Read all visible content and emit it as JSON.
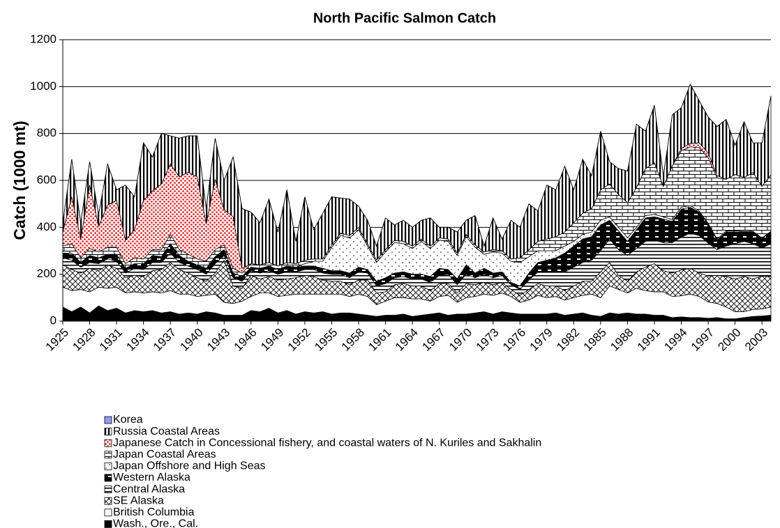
{
  "chart_data": {
    "type": "stacked_area",
    "title": "North Pacific Salmon Catch",
    "y_label": "Catch (1000 mt)",
    "x": [
      1925,
      1926,
      1927,
      1928,
      1929,
      1930,
      1931,
      1932,
      1933,
      1934,
      1935,
      1936,
      1937,
      1938,
      1939,
      1940,
      1941,
      1942,
      1943,
      1944,
      1945,
      1946,
      1947,
      1948,
      1949,
      1950,
      1951,
      1952,
      1953,
      1954,
      1955,
      1956,
      1957,
      1958,
      1959,
      1960,
      1961,
      1962,
      1963,
      1964,
      1965,
      1966,
      1967,
      1968,
      1969,
      1970,
      1971,
      1972,
      1973,
      1974,
      1975,
      1976,
      1977,
      1978,
      1979,
      1980,
      1981,
      1982,
      1983,
      1984,
      1985,
      1986,
      1987,
      1988,
      1989,
      1990,
      1991,
      1992,
      1993,
      1994,
      1995,
      1996,
      1997,
      1998,
      1999,
      2000,
      2001,
      2002,
      2003,
      2004
    ],
    "xlim": [
      1925,
      2004
    ],
    "xticks": [
      1925,
      1928,
      1931,
      1934,
      1937,
      1940,
      1943,
      1946,
      1949,
      1952,
      1955,
      1958,
      1961,
      1964,
      1967,
      1970,
      1973,
      1976,
      1979,
      1982,
      1985,
      1988,
      1991,
      1994,
      1997,
      2000,
      2003
    ],
    "ylim": [
      0,
      1200
    ],
    "yticks": [
      0,
      200,
      400,
      600,
      800,
      1000,
      1200
    ],
    "grid": true,
    "series": [
      {
        "name": "Wash., Ore., Cal.",
        "color": "#000000",
        "pattern": "solid",
        "values": [
          60,
          40,
          60,
          35,
          65,
          45,
          55,
          35,
          45,
          40,
          45,
          35,
          40,
          30,
          35,
          30,
          40,
          35,
          25,
          25,
          25,
          45,
          40,
          55,
          35,
          45,
          30,
          40,
          35,
          40,
          30,
          35,
          35,
          30,
          25,
          20,
          25,
          25,
          30,
          20,
          25,
          30,
          35,
          25,
          30,
          30,
          35,
          40,
          30,
          40,
          35,
          30,
          30,
          30,
          30,
          35,
          25,
          30,
          35,
          25,
          20,
          35,
          30,
          35,
          30,
          30,
          25,
          25,
          15,
          18,
          15,
          15,
          12,
          15,
          10,
          10,
          15,
          20,
          22,
          25
        ]
      },
      {
        "name": "British Columbia",
        "color": "#ffffff",
        "pattern": "solid",
        "values": [
          85,
          90,
          75,
          90,
          80,
          95,
          90,
          85,
          80,
          80,
          80,
          85,
          90,
          85,
          80,
          75,
          70,
          80,
          55,
          50,
          60,
          60,
          80,
          65,
          70,
          65,
          85,
          75,
          80,
          75,
          85,
          80,
          70,
          85,
          80,
          50,
          60,
          75,
          70,
          75,
          70,
          55,
          70,
          85,
          50,
          70,
          70,
          75,
          80,
          80,
          70,
          50,
          60,
          80,
          70,
          70,
          65,
          70,
          75,
          90,
          80,
          115,
          105,
          85,
          110,
          100,
          100,
          100,
          90,
          90,
          100,
          90,
          70,
          60,
          50,
          30,
          25,
          30,
          30,
          35
        ]
      },
      {
        "name": "SE Alaska",
        "color": "#000000",
        "pattern": "crosshatch",
        "values": [
          95,
          90,
          70,
          100,
          70,
          100,
          80,
          65,
          70,
          70,
          90,
          100,
          120,
          105,
          90,
          80,
          60,
          90,
          180,
          75,
          55,
          90,
          60,
          70,
          70,
          70,
          70,
          80,
          75,
          60,
          55,
          55,
          50,
          60,
          70,
          50,
          40,
          55,
          60,
          55,
          55,
          45,
          55,
          50,
          40,
          60,
          50,
          50,
          45,
          45,
          30,
          30,
          45,
          50,
          50,
          45,
          40,
          50,
          60,
          55,
          110,
          100,
          60,
          50,
          70,
          100,
          120,
          90,
          100,
          110,
          110,
          100,
          110,
          120,
          130,
          140,
          150,
          130,
          140,
          130
        ]
      },
      {
        "name": "Central Alaska",
        "color": "#000000",
        "pattern": "hlines",
        "values": [
          30,
          40,
          25,
          25,
          30,
          25,
          30,
          20,
          30,
          30,
          35,
          30,
          40,
          30,
          30,
          35,
          30,
          40,
          20,
          35,
          30,
          20,
          25,
          25,
          25,
          30,
          25,
          25,
          30,
          30,
          30,
          30,
          30,
          35,
          30,
          30,
          35,
          30,
          30,
          30,
          30,
          35,
          35,
          40,
          35,
          40,
          30,
          35,
          30,
          30,
          20,
          25,
          40,
          50,
          60,
          60,
          80,
          80,
          80,
          90,
          90,
          100,
          110,
          110,
          100,
          110,
          100,
          120,
          130,
          140,
          150,
          160,
          140,
          110,
          130,
          150,
          150,
          150,
          120,
          140
        ]
      },
      {
        "name": "Western Alaska",
        "color": "#000000",
        "pattern": "blockwhite",
        "values": [
          20,
          30,
          20,
          30,
          25,
          20,
          30,
          20,
          20,
          25,
          30,
          25,
          40,
          30,
          20,
          20,
          25,
          30,
          25,
          20,
          20,
          15,
          20,
          20,
          20,
          25,
          20,
          15,
          15,
          20,
          15,
          15,
          20,
          20,
          15,
          20,
          25,
          20,
          20,
          20,
          20,
          25,
          30,
          20,
          25,
          40,
          20,
          25,
          20,
          15,
          10,
          15,
          30,
          40,
          50,
          60,
          80,
          90,
          100,
          100,
          110,
          80,
          80,
          60,
          80,
          100,
          100,
          100,
          90,
          120,
          110,
          100,
          80,
          40,
          60,
          50,
          40,
          50,
          40,
          50
        ]
      },
      {
        "name": "Japan Offshore and High Seas",
        "color": "#000000",
        "pattern": "dots",
        "values": [
          0,
          0,
          0,
          0,
          0,
          0,
          0,
          0,
          0,
          0,
          0,
          0,
          0,
          0,
          0,
          0,
          0,
          0,
          0,
          0,
          0,
          0,
          0,
          0,
          0,
          0,
          0,
          10,
          20,
          30,
          100,
          150,
          150,
          160,
          100,
          80,
          110,
          130,
          120,
          110,
          140,
          120,
          120,
          120,
          100,
          120,
          110,
          60,
          90,
          80,
          90,
          100,
          70,
          50,
          40,
          30,
          30,
          20,
          20,
          20,
          20,
          15,
          15,
          15,
          10,
          10,
          10,
          10,
          8,
          8,
          8,
          5,
          5,
          5,
          5,
          5,
          3,
          3,
          3,
          3
        ]
      },
      {
        "name": "Japan Coastal Areas",
        "color": "#000000",
        "pattern": "brick",
        "values": [
          30,
          40,
          20,
          30,
          25,
          30,
          30,
          20,
          25,
          20,
          25,
          30,
          40,
          25,
          30,
          25,
          30,
          30,
          20,
          20,
          15,
          15,
          15,
          15,
          15,
          15,
          15,
          15,
          10,
          10,
          10,
          10,
          10,
          10,
          10,
          10,
          10,
          10,
          10,
          10,
          10,
          10,
          10,
          10,
          10,
          10,
          10,
          10,
          10,
          10,
          10,
          20,
          30,
          40,
          50,
          60,
          60,
          80,
          90,
          100,
          130,
          140,
          140,
          150,
          170,
          200,
          220,
          130,
          230,
          240,
          250,
          270,
          280,
          260,
          220,
          240,
          230,
          250,
          220,
          240
        ]
      },
      {
        "name": "Japanese Catch in Concessional fishery, and coastal waters of N. Kuriles and Sakhalin",
        "color": "#ff0000",
        "pattern": "reddots",
        "values": [
          60,
          200,
          80,
          270,
          110,
          180,
          200,
          100,
          120,
          250,
          250,
          280,
          300,
          310,
          350,
          350,
          160,
          300,
          150,
          220,
          20,
          0,
          0,
          0,
          0,
          0,
          0,
          0,
          0,
          0,
          0,
          0,
          0,
          0,
          0,
          0,
          0,
          0,
          0,
          0,
          0,
          0,
          0,
          0,
          0,
          0,
          0,
          0,
          0,
          0,
          0,
          0,
          0,
          0,
          0,
          0,
          0,
          0,
          0,
          0,
          0,
          0,
          0,
          0,
          0,
          0,
          0,
          0,
          0,
          10,
          15,
          20,
          20,
          10,
          0,
          0,
          0,
          0,
          0,
          0
        ]
      },
      {
        "name": "Russia Coastal Areas",
        "color": "#000000",
        "pattern": "vstripes",
        "values": [
          40,
          160,
          70,
          100,
          50,
          175,
          45,
          235,
          140,
          245,
          145,
          215,
          120,
          165,
          155,
          175,
          65,
          175,
          125,
          255,
          255,
          220,
          180,
          270,
          145,
          310,
          95,
          270,
          125,
          195,
          205,
          150,
          155,
          90,
          100,
          60,
          135,
          65,
          90,
          80,
          80,
          120,
          45,
          50,
          90,
          60,
          125,
          25,
          135,
          50,
          165,
          130,
          195,
          130,
          230,
          200,
          280,
          140,
          230,
          140,
          250,
          95,
          110,
          135,
          270,
          160,
          245,
          45,
          217,
          174,
          252,
          180,
          153,
          210,
          255,
          125,
          237,
          127,
          185,
          337
        ]
      },
      {
        "name": "Korea",
        "color": "#9999ff",
        "pattern": "solid",
        "values": [
          0,
          0,
          0,
          0,
          0,
          0,
          0,
          0,
          0,
          0,
          0,
          0,
          0,
          0,
          0,
          0,
          0,
          0,
          0,
          0,
          0,
          0,
          0,
          0,
          0,
          0,
          0,
          0,
          0,
          0,
          0,
          0,
          0,
          0,
          0,
          0,
          0,
          0,
          0,
          0,
          0,
          0,
          0,
          0,
          0,
          0,
          0,
          0,
          0,
          0,
          0,
          0,
          0,
          0,
          0,
          0,
          0,
          0,
          0,
          0,
          0,
          0,
          0,
          0,
          0,
          0,
          0,
          0,
          0,
          0,
          0,
          0,
          0,
          0,
          0,
          0,
          0,
          0,
          0,
          0
        ]
      }
    ]
  }
}
